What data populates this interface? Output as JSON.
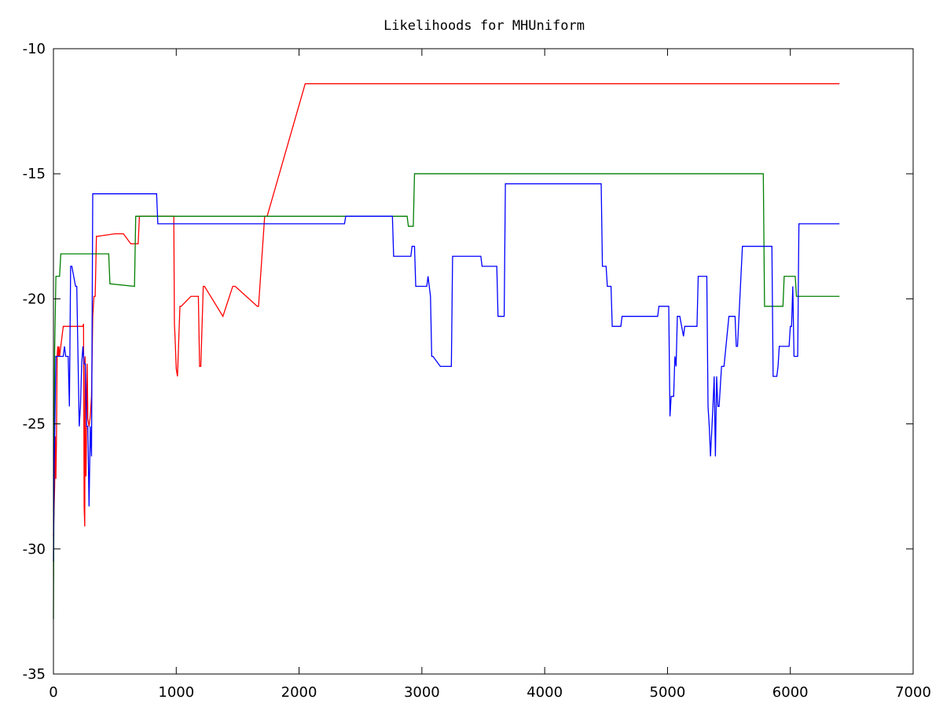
{
  "chart_data": {
    "type": "line",
    "title": "Likelihoods for MHUniform",
    "xlabel": "",
    "ylabel": "",
    "xlim": [
      0,
      7000
    ],
    "ylim": [
      -35,
      -10
    ],
    "x_ticks": [
      0,
      1000,
      2000,
      3000,
      4000,
      5000,
      6000,
      7000
    ],
    "x_tick_labels": [
      "0",
      "1000",
      "2000",
      "3000",
      "4000",
      "5000",
      "6000",
      "7000"
    ],
    "y_ticks": [
      -10,
      -15,
      -20,
      -25,
      -30,
      -35
    ],
    "y_tick_labels": [
      "-10",
      "-15",
      "-20",
      "-25",
      "-30",
      "-35"
    ],
    "grid": false,
    "legend": "none",
    "series": [
      {
        "color": "#ff0000",
        "x": [
          0,
          10,
          15,
          20,
          25,
          30,
          35,
          40,
          45,
          50,
          80,
          90,
          240,
          245,
          250,
          255,
          258,
          260,
          265,
          270,
          275,
          280,
          290,
          300,
          310,
          320,
          330,
          340,
          350,
          360,
          500,
          520,
          570,
          630,
          690,
          700,
          980,
          985,
          990,
          1000,
          1010,
          1030,
          1040,
          1120,
          1180,
          1190,
          1200,
          1220,
          1230,
          1380,
          1460,
          1480,
          1660,
          1670,
          1720,
          1740,
          2050,
          2060,
          6400
        ],
        "y": [
          -29.5,
          -27.5,
          -25.5,
          -27.2,
          -25.5,
          -22.3,
          -21.9,
          -22.3,
          -21.9,
          -22.3,
          -21.1,
          -21.1,
          -21.1,
          -21.0,
          -28.3,
          -29.1,
          -22.3,
          -26.5,
          -27.1,
          -24.8,
          -22.6,
          -24.8,
          -25.1,
          -24.7,
          -23.9,
          -20.7,
          -19.9,
          -19.9,
          -17.5,
          -17.5,
          -17.4,
          -17.4,
          -17.4,
          -17.8,
          -17.8,
          -16.7,
          -16.7,
          -21.0,
          -21.5,
          -22.8,
          -23.1,
          -20.3,
          -20.3,
          -19.9,
          -19.9,
          -22.7,
          -22.7,
          -19.5,
          -19.5,
          -20.7,
          -19.5,
          -19.5,
          -20.3,
          -20.3,
          -16.7,
          -16.7,
          -11.4,
          -11.4,
          -11.4
        ]
      },
      {
        "color": "#008000",
        "x": [
          0,
          5,
          10,
          20,
          30,
          50,
          60,
          80,
          450,
          460,
          660,
          670,
          680,
          700,
          2880,
          2890,
          2930,
          2940,
          5780,
          5790,
          5940,
          5950,
          6040,
          6050,
          6400
        ],
        "y": [
          -32.8,
          -27.0,
          -22.0,
          -19.1,
          -19.1,
          -19.1,
          -18.2,
          -18.2,
          -18.2,
          -19.4,
          -19.5,
          -16.7,
          -16.7,
          -16.7,
          -16.7,
          -17.1,
          -17.1,
          -15.0,
          -15.0,
          -20.3,
          -20.3,
          -19.1,
          -19.1,
          -19.9,
          -19.9
        ]
      },
      {
        "color": "#0000ff",
        "x": [
          0,
          5,
          10,
          20,
          80,
          90,
          100,
          120,
          130,
          140,
          150,
          180,
          190,
          200,
          210,
          220,
          230,
          240,
          250,
          260,
          270,
          280,
          290,
          300,
          310,
          320,
          330,
          840,
          850,
          2370,
          2380,
          2760,
          2770,
          2910,
          2920,
          2940,
          2950,
          3040,
          3050,
          3070,
          3080,
          3090,
          3150,
          3160,
          3240,
          3250,
          3480,
          3490,
          3610,
          3620,
          3670,
          3680,
          4460,
          4470,
          4500,
          4510,
          4540,
          4550,
          4620,
          4630,
          4750,
          4760,
          4920,
          4930,
          5010,
          5020,
          5030,
          5050,
          5060,
          5070,
          5080,
          5100,
          5130,
          5140,
          5150,
          5160,
          5240,
          5250,
          5320,
          5330,
          5340,
          5350,
          5370,
          5380,
          5390,
          5400,
          5410,
          5420,
          5440,
          5460,
          5500,
          5550,
          5560,
          5570,
          5610,
          5620,
          5850,
          5860,
          5890,
          5900,
          5910,
          5990,
          6000,
          6010,
          6020,
          6030,
          6060,
          6070,
          6400
        ],
        "y": [
          -30.5,
          -26.8,
          -25.6,
          -22.3,
          -22.3,
          -21.9,
          -22.3,
          -22.3,
          -24.3,
          -18.7,
          -18.7,
          -19.5,
          -19.5,
          -22.3,
          -25.1,
          -24.3,
          -22.6,
          -21.9,
          -22.6,
          -22.6,
          -25.1,
          -25.1,
          -28.3,
          -25.1,
          -26.3,
          -15.8,
          -15.8,
          -15.8,
          -17.0,
          -17.0,
          -16.7,
          -16.7,
          -18.3,
          -18.3,
          -17.9,
          -17.9,
          -19.5,
          -19.5,
          -19.1,
          -19.9,
          -22.3,
          -22.3,
          -22.7,
          -22.7,
          -22.7,
          -18.3,
          -18.3,
          -18.7,
          -18.7,
          -20.7,
          -20.7,
          -15.4,
          -15.4,
          -18.7,
          -18.7,
          -19.5,
          -19.5,
          -21.1,
          -21.1,
          -20.7,
          -20.7,
          -20.7,
          -20.7,
          -20.3,
          -20.3,
          -24.7,
          -23.9,
          -23.9,
          -22.3,
          -22.7,
          -20.7,
          -20.7,
          -21.5,
          -21.1,
          -21.1,
          -21.1,
          -21.1,
          -19.1,
          -19.1,
          -24.3,
          -25.1,
          -26.3,
          -24.3,
          -23.1,
          -26.3,
          -23.1,
          -24.3,
          -24.3,
          -22.7,
          -22.7,
          -20.7,
          -20.7,
          -21.9,
          -21.9,
          -17.9,
          -17.9,
          -17.9,
          -23.1,
          -23.1,
          -22.7,
          -21.9,
          -21.9,
          -21.1,
          -21.1,
          -19.5,
          -22.3,
          -22.3,
          -17.0,
          -17.0
        ]
      }
    ]
  }
}
